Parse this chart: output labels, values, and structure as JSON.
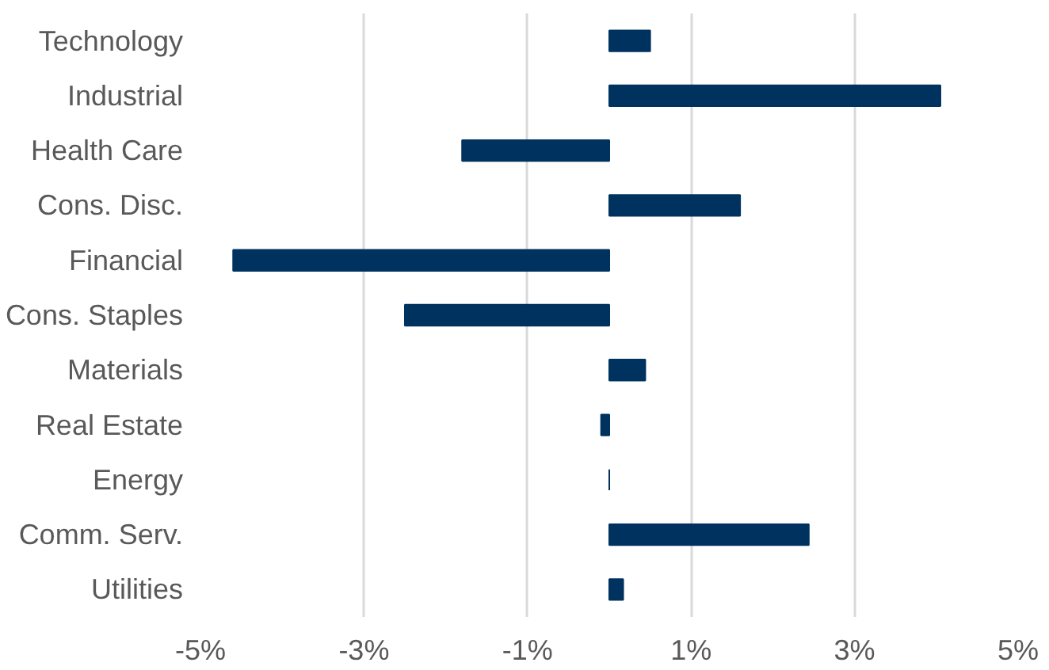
{
  "chart_data": {
    "type": "bar",
    "orientation": "horizontal",
    "categories": [
      "Technology",
      "Industrial",
      "Health Care",
      "Cons. Disc.",
      "Financial",
      "Cons. Staples",
      "Materials",
      "Real Estate",
      "Energy",
      "Comm. Serv.",
      "Utilities"
    ],
    "values": [
      0.5,
      4.05,
      -1.8,
      1.6,
      -4.6,
      -2.5,
      0.44,
      -0.1,
      0,
      2.44,
      0.17
    ],
    "color": "#00325f",
    "xlim": [
      -5,
      5
    ],
    "xticks": [
      {
        "value": -5,
        "label": "-5%"
      },
      {
        "value": -3,
        "label": "-3%"
      },
      {
        "value": -1,
        "label": "-1%"
      },
      {
        "value": 1,
        "label": "1%"
      },
      {
        "value": 3,
        "label": "3%"
      },
      {
        "value": 5,
        "label": "5%"
      }
    ],
    "grid": "x"
  }
}
